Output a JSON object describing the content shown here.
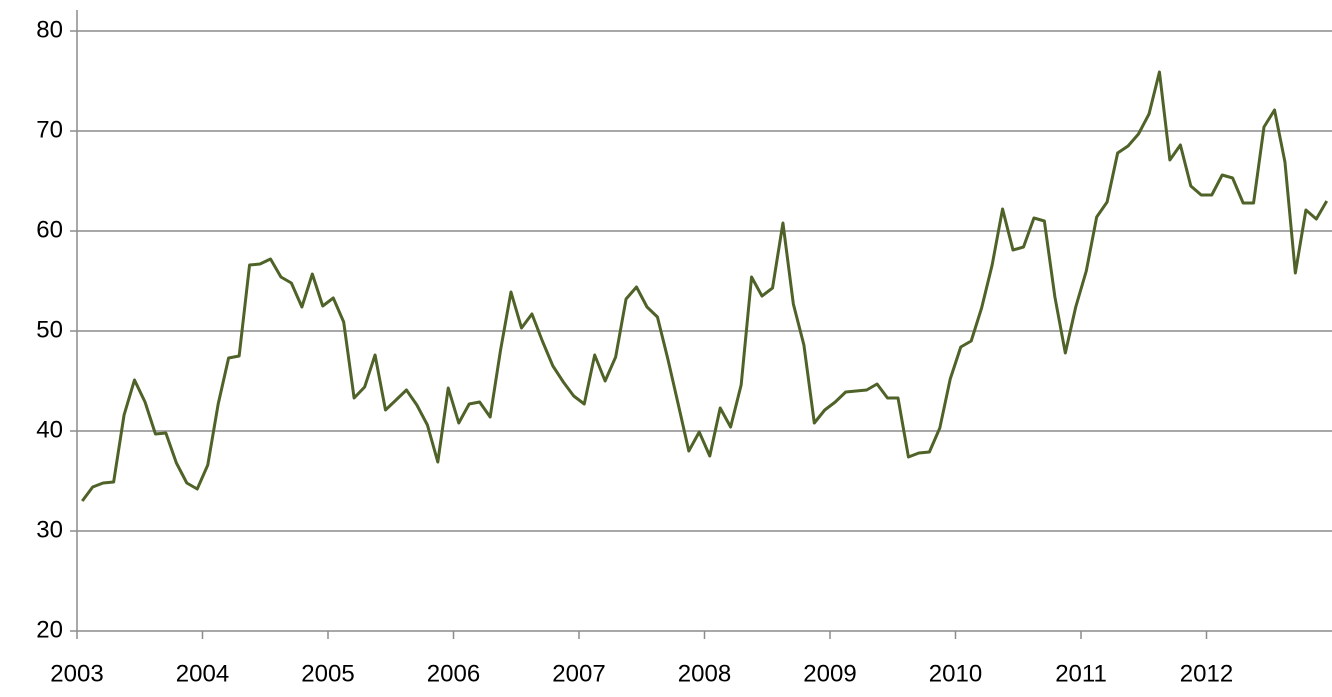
{
  "chart_data": {
    "type": "line",
    "x": [
      2003.042,
      2003.125,
      2003.208,
      2003.292,
      2003.375,
      2003.458,
      2003.542,
      2003.625,
      2003.708,
      2003.792,
      2003.875,
      2003.958,
      2004.042,
      2004.125,
      2004.208,
      2004.292,
      2004.375,
      2004.458,
      2004.542,
      2004.625,
      2004.708,
      2004.792,
      2004.875,
      2004.958,
      2005.042,
      2005.125,
      2005.208,
      2005.292,
      2005.375,
      2005.458,
      2005.542,
      2005.625,
      2005.708,
      2005.792,
      2005.875,
      2005.958,
      2006.042,
      2006.125,
      2006.208,
      2006.292,
      2006.375,
      2006.458,
      2006.542,
      2006.625,
      2006.708,
      2006.792,
      2006.875,
      2006.958,
      2007.042,
      2007.125,
      2007.208,
      2007.292,
      2007.375,
      2007.458,
      2007.542,
      2007.625,
      2007.708,
      2007.792,
      2007.875,
      2007.958,
      2008.042,
      2008.125,
      2008.208,
      2008.292,
      2008.375,
      2008.458,
      2008.542,
      2008.625,
      2008.708,
      2008.792,
      2008.875,
      2008.958,
      2009.042,
      2009.125,
      2009.208,
      2009.292,
      2009.375,
      2009.458,
      2009.542,
      2009.625,
      2009.708,
      2009.792,
      2009.875,
      2009.958,
      2010.042,
      2010.125,
      2010.208,
      2010.292,
      2010.375,
      2010.458,
      2010.542,
      2010.625,
      2010.708,
      2010.792,
      2010.875,
      2010.958,
      2011.042,
      2011.125,
      2011.208,
      2011.292,
      2011.375,
      2011.458,
      2011.542,
      2011.625,
      2011.708,
      2011.792,
      2011.875,
      2011.958,
      2012.042,
      2012.125,
      2012.208,
      2012.292,
      2012.375,
      2012.458,
      2012.542,
      2012.625,
      2012.708,
      2012.792,
      2012.875,
      2012.958
    ],
    "series": [
      {
        "color": "#4f6228",
        "values": [
          33.0,
          34.4,
          34.8,
          34.9,
          41.6,
          45.1,
          42.9,
          39.7,
          39.8,
          36.8,
          34.8,
          34.2,
          36.6,
          42.7,
          47.3,
          47.5,
          56.6,
          56.7,
          57.2,
          55.4,
          54.8,
          52.4,
          55.7,
          52.5,
          53.3,
          50.9,
          43.3,
          44.4,
          47.6,
          42.1,
          43.1,
          44.1,
          42.6,
          40.6,
          36.9,
          44.3,
          40.8,
          42.7,
          42.9,
          41.4,
          48.1,
          53.9,
          50.3,
          51.7,
          49.0,
          46.5,
          44.9,
          43.5,
          42.7,
          47.6,
          45.0,
          47.4,
          53.2,
          54.4,
          52.4,
          51.4,
          47.2,
          42.6,
          38.0,
          39.9,
          37.5,
          42.3,
          40.4,
          44.6,
          55.4,
          53.5,
          54.3,
          60.8,
          52.7,
          48.6,
          40.8,
          42.1,
          42.9,
          43.9,
          44.0,
          44.1,
          44.7,
          43.3,
          43.3,
          37.4,
          37.8,
          37.9,
          40.3,
          45.2,
          48.4,
          49.0,
          52.3,
          56.6,
          62.2,
          58.1,
          58.4,
          61.3,
          61.0,
          53.4,
          47.8,
          52.4,
          56.0,
          61.4,
          62.9,
          67.8,
          68.5,
          69.7,
          71.7,
          75.9,
          67.1,
          68.6,
          64.5,
          63.6,
          63.6,
          65.6,
          65.3,
          62.8,
          62.8,
          70.4,
          72.1,
          66.9,
          55.8,
          62.1,
          61.2,
          63.0
        ]
      }
    ],
    "xlim": [
      2003,
      2013
    ],
    "xticks": [
      2003,
      2004,
      2005,
      2006,
      2007,
      2008,
      2009,
      2010,
      2011,
      2012
    ],
    "ylim": [
      20,
      80
    ],
    "yticks": [
      20,
      30,
      40,
      50,
      60,
      70,
      80
    ],
    "grid": true
  }
}
